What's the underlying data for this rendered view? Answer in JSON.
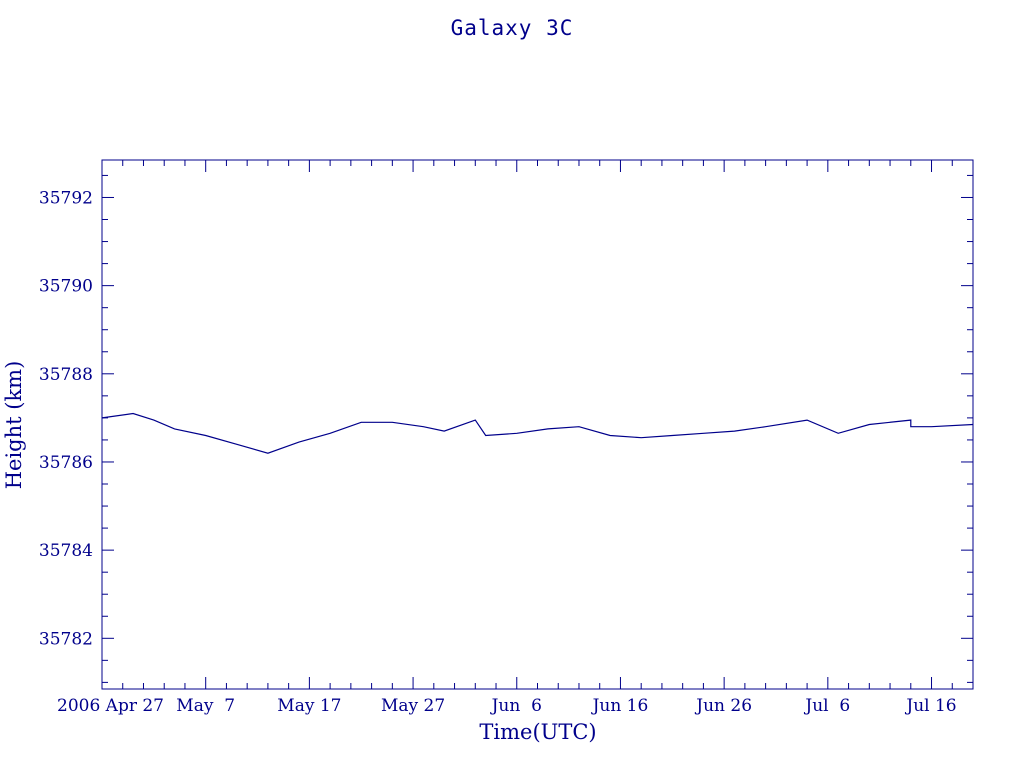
{
  "chart_data": {
    "type": "line",
    "title": "Galaxy 3C",
    "xlabel": "Time(UTC)",
    "ylabel": "Height (km)",
    "x_tick_labels": [
      "2006 Apr 27",
      "May  7",
      "May 17",
      "May 27",
      "Jun  6",
      "Jun 16",
      "Jun 26",
      "Jul  6",
      "Jul 16"
    ],
    "x_ticks": [
      "2006-04-27",
      "2006-05-07",
      "2006-05-17",
      "2006-05-27",
      "2006-06-06",
      "2006-06-16",
      "2006-06-26",
      "2006-07-06",
      "2006-07-16"
    ],
    "xlim": [
      "2006-04-27",
      "2006-07-20"
    ],
    "y_tick_labels": [
      "35782",
      "35784",
      "35786",
      "35788",
      "35790",
      "35792"
    ],
    "ylim": [
      35780.85,
      35792.85
    ],
    "grid": false,
    "color": "#00008b",
    "series": [
      {
        "x": [
          "2006-04-27",
          "2006-04-30",
          "2006-05-02",
          "2006-05-04",
          "2006-05-07",
          "2006-05-10",
          "2006-05-13",
          "2006-05-16",
          "2006-05-19",
          "2006-05-22",
          "2006-05-25",
          "2006-05-28",
          "2006-05-30",
          "2006-06-02",
          "2006-06-03",
          "2006-06-06",
          "2006-06-09",
          "2006-06-12",
          "2006-06-15",
          "2006-06-18",
          "2006-06-21",
          "2006-06-24",
          "2006-06-27",
          "2006-06-30",
          "2006-07-04",
          "2006-07-07",
          "2006-07-10",
          "2006-07-14",
          "2006-07-14",
          "2006-07-16",
          "2006-07-20"
        ],
        "y": [
          35787.0,
          35787.1,
          35786.95,
          35786.75,
          35786.6,
          35786.4,
          35786.2,
          35786.45,
          35786.65,
          35786.9,
          35786.9,
          35786.8,
          35786.7,
          35786.95,
          35786.6,
          35786.65,
          35786.75,
          35786.8,
          35786.6,
          35786.55,
          35786.6,
          35786.65,
          35786.7,
          35786.8,
          35786.95,
          35786.65,
          35786.85,
          35786.95,
          35786.8,
          35786.8,
          35786.85
        ]
      }
    ]
  }
}
